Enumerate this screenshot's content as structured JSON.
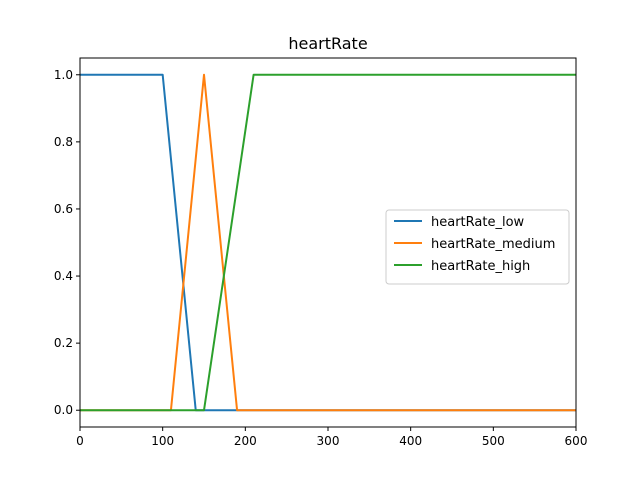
{
  "chart_data": {
    "type": "line",
    "title": "heartRate",
    "xlabel": "",
    "ylabel": "",
    "xlim": [
      0,
      600
    ],
    "ylim": [
      -0.05,
      1.05
    ],
    "xticks": [
      0,
      100,
      200,
      300,
      400,
      500,
      600
    ],
    "yticks": [
      0.0,
      0.2,
      0.4,
      0.6,
      0.8,
      1.0
    ],
    "ytick_labels": [
      "0.0",
      "0.2",
      "0.4",
      "0.6",
      "0.8",
      "1.0"
    ],
    "grid": false,
    "legend_position": "center-right",
    "series": [
      {
        "name": "heartRate_low",
        "color": "#1f77b4",
        "x": [
          0,
          100,
          140,
          600
        ],
        "y": [
          1,
          1,
          0,
          0
        ]
      },
      {
        "name": "heartRate_medium",
        "color": "#ff7f0e",
        "x": [
          0,
          110,
          150,
          190,
          600
        ],
        "y": [
          0,
          0,
          1,
          0,
          0
        ]
      },
      {
        "name": "heartRate_high",
        "color": "#2ca02c",
        "x": [
          0,
          150,
          210,
          600
        ],
        "y": [
          0,
          0,
          1,
          1
        ]
      }
    ]
  }
}
